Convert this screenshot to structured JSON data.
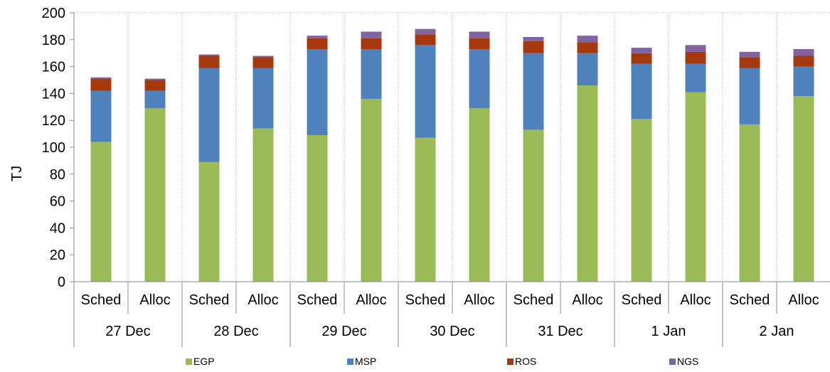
{
  "chart_data": {
    "type": "bar",
    "stacked": true,
    "title": "",
    "ylabel": "TJ",
    "xlabel": "",
    "ylim": [
      0,
      200
    ],
    "yticks": [
      0,
      20,
      40,
      60,
      80,
      100,
      120,
      140,
      160,
      180,
      200
    ],
    "ytick_labels": [
      "0",
      "20",
      "40",
      "60",
      "80",
      "100",
      "120",
      "140",
      "160",
      "180",
      "200"
    ],
    "grid": "vertical dotted between categories",
    "legend_position": "bottom",
    "groups": [
      {
        "label": "27 Dec",
        "bars": [
          "Sched",
          "Alloc"
        ]
      },
      {
        "label": "28 Dec",
        "bars": [
          "Sched",
          "Alloc"
        ]
      },
      {
        "label": "29 Dec",
        "bars": [
          "Sched",
          "Alloc"
        ]
      },
      {
        "label": "30 Dec",
        "bars": [
          "Sched",
          "Alloc"
        ]
      },
      {
        "label": "31 Dec",
        "bars": [
          "Sched",
          "Alloc"
        ]
      },
      {
        "label": "1 Jan",
        "bars": [
          "Sched",
          "Alloc"
        ]
      },
      {
        "label": "2 Jan",
        "bars": [
          "Sched",
          "Alloc"
        ]
      }
    ],
    "categories": [
      "Sched",
      "Alloc",
      "Sched",
      "Alloc",
      "Sched",
      "Alloc",
      "Sched",
      "Alloc",
      "Sched",
      "Alloc",
      "Sched",
      "Alloc",
      "Sched",
      "Alloc"
    ],
    "series": [
      {
        "name": "EGP",
        "color": "#9bbb59",
        "values": [
          104,
          129,
          89,
          114,
          109,
          136,
          107,
          129,
          113,
          146,
          121,
          141,
          117,
          138
        ]
      },
      {
        "name": "MSP",
        "color": "#4f81bd",
        "values": [
          38,
          13,
          70,
          45,
          64,
          37,
          69,
          44,
          57,
          24,
          41,
          21,
          42,
          22
        ]
      },
      {
        "name": "ROS",
        "color": "#a5380c",
        "values": [
          9,
          8,
          9,
          8,
          8,
          8,
          8,
          8,
          9,
          8,
          8,
          9,
          8,
          8
        ]
      },
      {
        "name": "NGS",
        "color": "#8064a2",
        "values": [
          1,
          1,
          1,
          1,
          2,
          5,
          4,
          5,
          3,
          5,
          4,
          5,
          4,
          5
        ]
      }
    ]
  }
}
